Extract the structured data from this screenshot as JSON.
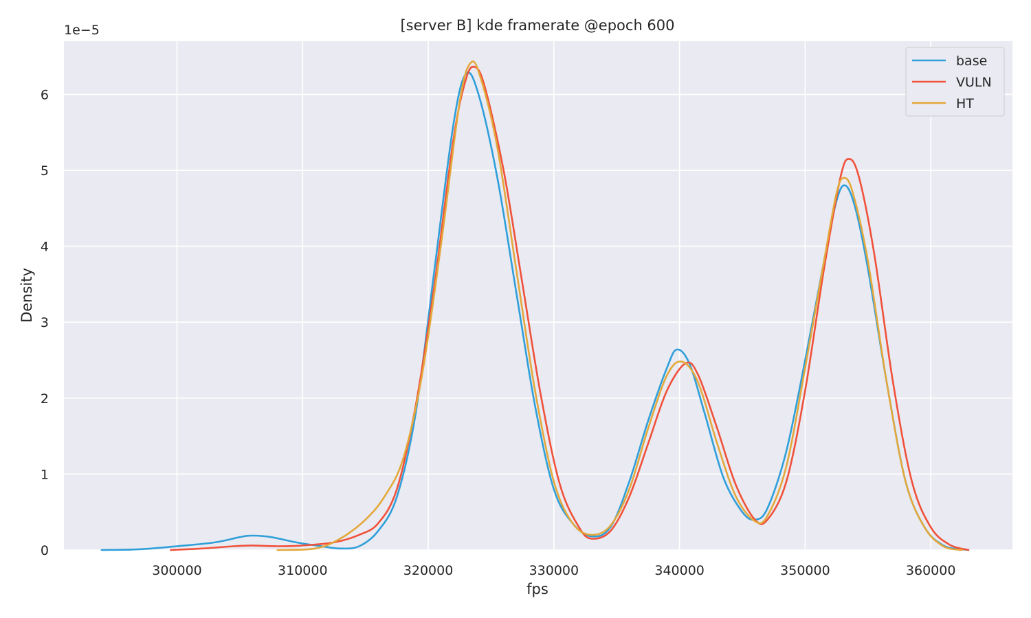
{
  "chart_data": {
    "type": "line",
    "title": "[server B] kde framerate @epoch 600",
    "xlabel": "fps",
    "ylabel": "Density",
    "scale_label": "1e−5",
    "xlim": [
      291000,
      366500
    ],
    "ylim": [
      0,
      6.7
    ],
    "x_ticks": [
      300000,
      310000,
      320000,
      330000,
      340000,
      350000,
      360000
    ],
    "y_ticks": [
      0,
      1,
      2,
      3,
      4,
      5,
      6
    ],
    "grid": true,
    "legend_position": "top-right",
    "series": [
      {
        "name": "base",
        "color": "#2f9fd9",
        "points": [
          [
            294000,
            0.0
          ],
          [
            297000,
            0.01
          ],
          [
            300000,
            0.05
          ],
          [
            303000,
            0.1
          ],
          [
            305000,
            0.17
          ],
          [
            306000,
            0.19
          ],
          [
            307500,
            0.17
          ],
          [
            309500,
            0.1
          ],
          [
            311500,
            0.05
          ],
          [
            313000,
            0.02
          ],
          [
            314500,
            0.05
          ],
          [
            316000,
            0.25
          ],
          [
            317500,
            0.7
          ],
          [
            319000,
            1.8
          ],
          [
            320500,
            3.7
          ],
          [
            322000,
            5.6
          ],
          [
            323000,
            6.27
          ],
          [
            324000,
            6.0
          ],
          [
            325500,
            4.9
          ],
          [
            327000,
            3.4
          ],
          [
            328500,
            1.9
          ],
          [
            330000,
            0.8
          ],
          [
            331500,
            0.35
          ],
          [
            333000,
            0.18
          ],
          [
            334500,
            0.3
          ],
          [
            336000,
            0.9
          ],
          [
            337500,
            1.7
          ],
          [
            339000,
            2.4
          ],
          [
            339800,
            2.64
          ],
          [
            340800,
            2.45
          ],
          [
            342000,
            1.8
          ],
          [
            343500,
            0.95
          ],
          [
            345000,
            0.5
          ],
          [
            346000,
            0.4
          ],
          [
            347000,
            0.55
          ],
          [
            348500,
            1.3
          ],
          [
            350000,
            2.5
          ],
          [
            351500,
            3.8
          ],
          [
            352500,
            4.6
          ],
          [
            353200,
            4.8
          ],
          [
            354000,
            4.5
          ],
          [
            355000,
            3.7
          ],
          [
            356500,
            2.2
          ],
          [
            358000,
            0.9
          ],
          [
            359500,
            0.3
          ],
          [
            361000,
            0.06
          ],
          [
            362500,
            0.01
          ],
          [
            363000,
            0.0
          ]
        ]
      },
      {
        "name": "VULN",
        "color": "#f0513a",
        "points": [
          [
            299500,
            0.0
          ],
          [
            302000,
            0.02
          ],
          [
            304500,
            0.05
          ],
          [
            306000,
            0.06
          ],
          [
            308000,
            0.05
          ],
          [
            310000,
            0.06
          ],
          [
            312500,
            0.1
          ],
          [
            314500,
            0.2
          ],
          [
            316000,
            0.35
          ],
          [
            317500,
            0.8
          ],
          [
            319000,
            1.9
          ],
          [
            320500,
            3.5
          ],
          [
            322000,
            5.4
          ],
          [
            323000,
            6.2
          ],
          [
            323700,
            6.36
          ],
          [
            324500,
            6.1
          ],
          [
            326000,
            5.0
          ],
          [
            327500,
            3.5
          ],
          [
            329000,
            2.0
          ],
          [
            330500,
            0.85
          ],
          [
            332000,
            0.3
          ],
          [
            333000,
            0.15
          ],
          [
            334500,
            0.25
          ],
          [
            336000,
            0.7
          ],
          [
            337500,
            1.4
          ],
          [
            339000,
            2.1
          ],
          [
            340500,
            2.46
          ],
          [
            341500,
            2.3
          ],
          [
            343000,
            1.6
          ],
          [
            344500,
            0.85
          ],
          [
            346000,
            0.4
          ],
          [
            347000,
            0.4
          ],
          [
            348500,
            0.9
          ],
          [
            350000,
            2.1
          ],
          [
            351500,
            3.7
          ],
          [
            352800,
            4.9
          ],
          [
            353500,
            5.15
          ],
          [
            354300,
            4.9
          ],
          [
            355500,
            3.9
          ],
          [
            357000,
            2.2
          ],
          [
            358500,
            0.9
          ],
          [
            360000,
            0.3
          ],
          [
            361500,
            0.07
          ],
          [
            363000,
            0.0
          ]
        ]
      },
      {
        "name": "HT",
        "color": "#e3a83b",
        "points": [
          [
            308000,
            0.0
          ],
          [
            311000,
            0.02
          ],
          [
            313000,
            0.15
          ],
          [
            315000,
            0.4
          ],
          [
            316500,
            0.7
          ],
          [
            318000,
            1.2
          ],
          [
            319500,
            2.3
          ],
          [
            321000,
            4.0
          ],
          [
            322500,
            5.9
          ],
          [
            323400,
            6.42
          ],
          [
            324200,
            6.2
          ],
          [
            325500,
            5.3
          ],
          [
            327000,
            3.7
          ],
          [
            328500,
            2.1
          ],
          [
            330000,
            0.9
          ],
          [
            331500,
            0.35
          ],
          [
            333000,
            0.2
          ],
          [
            334500,
            0.32
          ],
          [
            336000,
            0.8
          ],
          [
            337500,
            1.6
          ],
          [
            339000,
            2.3
          ],
          [
            340200,
            2.48
          ],
          [
            341500,
            2.2
          ],
          [
            343000,
            1.4
          ],
          [
            344500,
            0.7
          ],
          [
            346000,
            0.38
          ],
          [
            347000,
            0.45
          ],
          [
            348500,
            1.1
          ],
          [
            350000,
            2.4
          ],
          [
            351500,
            3.8
          ],
          [
            352500,
            4.7
          ],
          [
            353100,
            4.9
          ],
          [
            353800,
            4.7
          ],
          [
            355000,
            3.8
          ],
          [
            356500,
            2.2
          ],
          [
            358000,
            0.9
          ],
          [
            359500,
            0.3
          ],
          [
            361000,
            0.05
          ],
          [
            362500,
            0.0
          ]
        ]
      }
    ]
  }
}
